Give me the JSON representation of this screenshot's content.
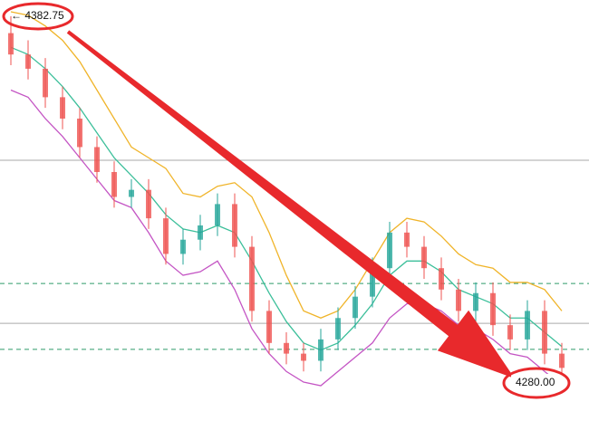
{
  "chart_data": {
    "type": "candlestick",
    "ylim": [
      4272.9,
      4387.3
    ],
    "up_color": "#26a69a",
    "down_color": "#ef5350",
    "open": [
      4378,
      4372,
      4368,
      4360,
      4354,
      4346,
      4339,
      4332,
      4334,
      4326,
      4316,
      4320,
      4324,
      4330,
      4318,
      4300,
      4291,
      4288,
      4286,
      4292,
      4298,
      4304,
      4312,
      4322,
      4318,
      4312,
      4306,
      4300,
      4305,
      4296,
      4292,
      4300,
      4288
    ],
    "high": [
      4382.75,
      4376,
      4371,
      4363,
      4357,
      4349,
      4342,
      4337,
      4337,
      4329,
      4323,
      4327,
      4333,
      4333,
      4321,
      4303,
      4294,
      4291,
      4295,
      4301,
      4307,
      4315,
      4325,
      4325,
      4321,
      4315,
      4309,
      4308,
      4308,
      4299,
      4303,
      4303,
      4291
    ],
    "low": [
      4369,
      4365,
      4357,
      4351,
      4343,
      4336,
      4329,
      4329,
      4323,
      4313,
      4313,
      4317,
      4321,
      4315,
      4297,
      4288,
      4285,
      4283,
      4283,
      4289,
      4295,
      4301,
      4309,
      4315,
      4309,
      4303,
      4297,
      4297,
      4293,
      4289,
      4289,
      4285,
      4280
    ],
    "close": [
      4372,
      4368,
      4360,
      4354,
      4346,
      4339,
      4332,
      4334,
      4326,
      4316,
      4320,
      4324,
      4330,
      4318,
      4300,
      4291,
      4288,
      4286,
      4292,
      4298,
      4304,
      4312,
      4322,
      4318,
      4312,
      4306,
      4300,
      4305,
      4296,
      4292,
      4300,
      4288,
      4284
    ],
    "bands": [
      {
        "color": "#f0b429",
        "values": [
          4384,
          4383,
          4380,
          4376,
          4370,
          4362,
          4354,
          4346,
          4343,
          4340,
          4333,
          4332,
          4335,
          4336,
          4332,
          4322,
          4310,
          4300,
          4298,
          4300,
          4306,
          4314,
          4322,
          4326,
          4325,
          4321,
          4316,
          4313,
          4312,
          4308,
          4308,
          4306,
          4300
        ]
      },
      {
        "color": "#3cbf9a",
        "values": [
          4374,
          4372,
          4368,
          4363,
          4357,
          4350,
          4343,
          4338,
          4333,
          4327,
          4323,
          4322,
          4324,
          4322,
          4314,
          4305,
          4297,
          4291,
          4289,
          4291,
          4296,
          4302,
          4310,
          4314,
          4314,
          4311,
          4306,
          4304,
          4302,
          4298,
          4298,
          4294,
          4290
        ]
      },
      {
        "color": "#c455c4",
        "values": [
          4362,
          4360,
          4354,
          4349,
          4343,
          4337,
          4331,
          4329,
          4322,
          4314,
          4310,
          4311,
          4314,
          4306,
          4295,
          4288,
          4283,
          4280,
          4279,
          4283,
          4287,
          4291,
          4298,
          4302,
          4302,
          4300,
          4296,
          4295,
          4292,
          4288,
          4287,
          4283,
          4279
        ]
      }
    ],
    "levels": [
      {
        "value": 4342.3,
        "style": "solid",
        "color": "#aaaaaa"
      },
      {
        "value": 4307.7,
        "style": "dashed",
        "color": "#2e9a6a"
      },
      {
        "value": 4296.5,
        "style": "solid",
        "color": "#aaaaaa"
      },
      {
        "value": 4289.2,
        "style": "dashed",
        "color": "#2e9a6a"
      }
    ],
    "annotations": [
      {
        "text": "← 4382.75"
      },
      {
        "text": "4280.00"
      }
    ]
  }
}
